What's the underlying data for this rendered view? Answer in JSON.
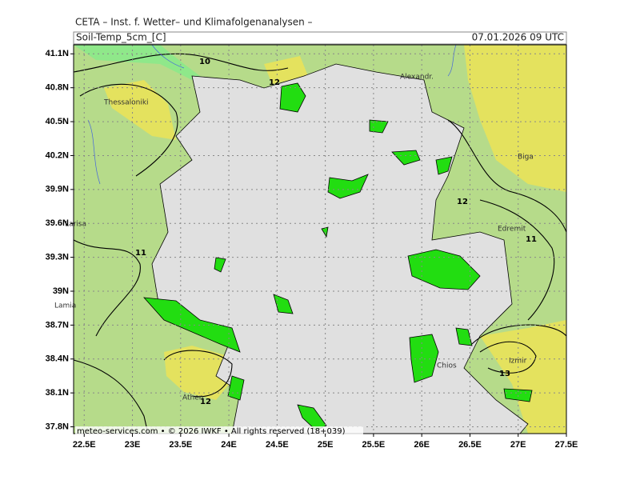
{
  "header": {
    "title": "CETA – Inst. f. Wetter– und Klimafolgenanalysen –",
    "parameter": "Soil-Temp_5cm_[C]",
    "valid_time": "07.01.2026 09 UTC"
  },
  "map": {
    "lon_range": [
      22.39,
      27.5
    ],
    "lat_range": [
      37.74,
      41.18
    ],
    "lon_ticks": [
      {
        "value": 22.5,
        "label": "22.5E"
      },
      {
        "value": 23,
        "label": "23E"
      },
      {
        "value": 23.5,
        "label": "23.5E"
      },
      {
        "value": 24,
        "label": "24E"
      },
      {
        "value": 24.5,
        "label": "24.5E"
      },
      {
        "value": 25,
        "label": "25E"
      },
      {
        "value": 25.5,
        "label": "25.5E"
      },
      {
        "value": 26,
        "label": "26E"
      },
      {
        "value": 26.5,
        "label": "26.5E"
      },
      {
        "value": 27,
        "label": "27E"
      },
      {
        "value": 27.5,
        "label": "27.5E"
      }
    ],
    "lat_ticks": [
      {
        "value": 41.1,
        "label": "41.1N"
      },
      {
        "value": 40.8,
        "label": "40.8N"
      },
      {
        "value": 40.5,
        "label": "40.5N"
      },
      {
        "value": 40.2,
        "label": "40.2N"
      },
      {
        "value": 39.9,
        "label": "39.9N"
      },
      {
        "value": 39.6,
        "label": "39.6N"
      },
      {
        "value": 39.3,
        "label": "39.3N"
      },
      {
        "value": 39,
        "label": "39N"
      },
      {
        "value": 38.7,
        "label": "38.7N"
      },
      {
        "value": 38.4,
        "label": "38.4N"
      },
      {
        "value": 38.1,
        "label": "38.1N"
      },
      {
        "value": 37.8,
        "label": "37.8N"
      }
    ],
    "places": [
      "Thessaloniki",
      "Alexandr.",
      "Biga",
      "Edremit",
      "Larisa",
      "Lamia",
      "Athen",
      "Chios",
      "Izmir"
    ],
    "contour_labels": [
      10,
      12,
      12,
      11,
      11,
      13,
      12
    ]
  },
  "footer": "meteo-services.com • © 2026 IWKF • All rights reserved (18+039)"
}
